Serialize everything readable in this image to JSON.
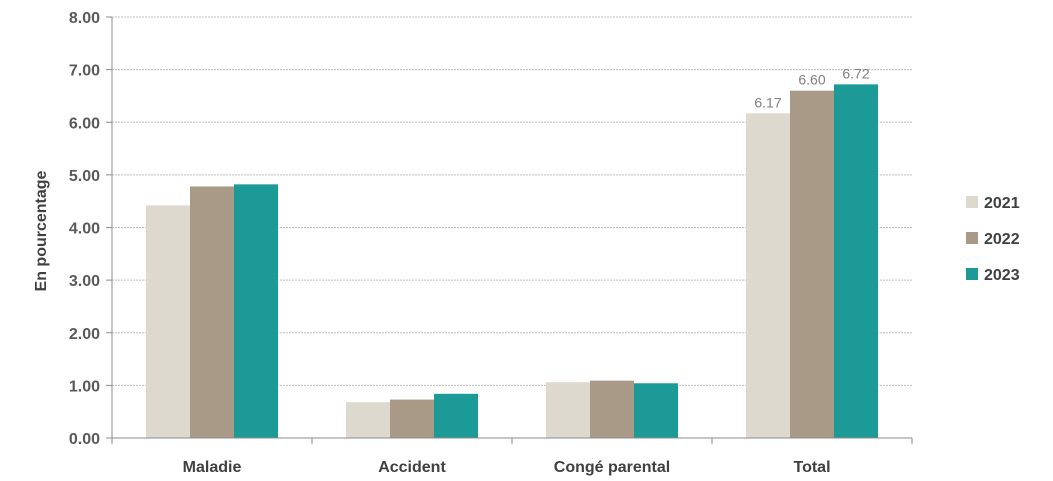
{
  "chart_data": {
    "type": "bar",
    "categories": [
      "Maladie",
      "Accident",
      "Congé parental",
      "Total"
    ],
    "series": [
      {
        "name": "2021",
        "color": "#ddd9ce",
        "values": [
          4.42,
          0.68,
          1.06,
          6.17
        ]
      },
      {
        "name": "2022",
        "color": "#a89a87",
        "values": [
          4.78,
          0.73,
          1.09,
          6.6
        ]
      },
      {
        "name": "2023",
        "color": "#1b9a98",
        "values": [
          4.82,
          0.84,
          1.04,
          6.72
        ]
      }
    ],
    "data_labels": [
      {
        "series": 0,
        "category": 3,
        "text": "6.17"
      },
      {
        "series": 1,
        "category": 3,
        "text": "6.60"
      },
      {
        "series": 2,
        "category": 3,
        "text": "6.72"
      }
    ],
    "ylabel": "En pourcentage",
    "xlabel": "",
    "ylim": [
      0,
      8
    ],
    "yticks": [
      "0.00",
      "1.00",
      "2.00",
      "3.00",
      "4.00",
      "5.00",
      "6.00",
      "7.00",
      "8.00"
    ],
    "grid": true,
    "legend_position": "right",
    "colors": {
      "grid": "#bfbfbf",
      "axis": "#8c8c8c"
    }
  }
}
